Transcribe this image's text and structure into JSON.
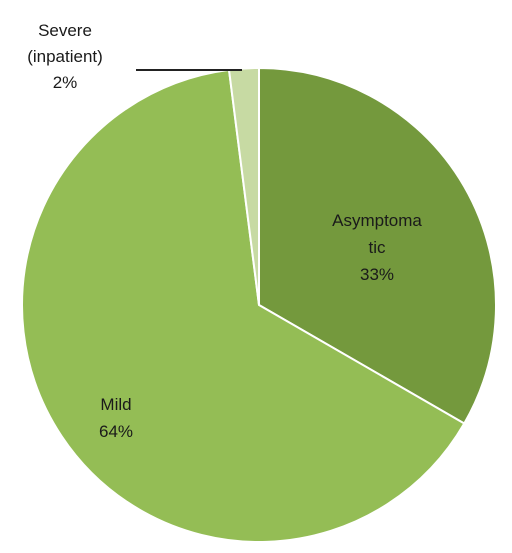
{
  "chart_data": {
    "type": "pie",
    "title": "",
    "slices": [
      {
        "label": "Asymptomatic",
        "value": 33,
        "display_lines": [
          "Asymptoma",
          "tic",
          "33%"
        ],
        "color": "#74993d"
      },
      {
        "label": "Mild",
        "value": 64,
        "display_lines": [
          "Mild",
          "64%"
        ],
        "color": "#94bd55"
      },
      {
        "label": "Severe (inpatient)",
        "value": 2,
        "display_lines": [
          "Severe",
          "(inpatient)",
          "2%"
        ],
        "color": "#c7daa3"
      }
    ],
    "legend": "none",
    "data_labels": "on-chart"
  }
}
